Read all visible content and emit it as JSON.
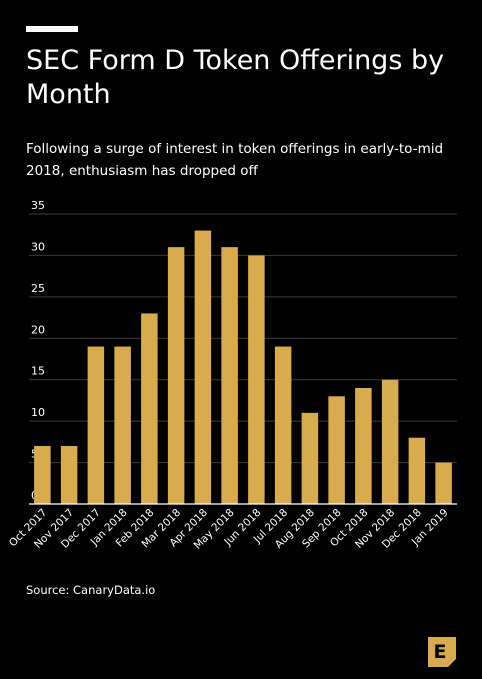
{
  "header": {
    "title": "SEC Form D Token Offerings by Month",
    "subtitle": "Following a surge of interest in token offerings in early-to-mid 2018, enthusiasm has dropped off"
  },
  "footer": {
    "source": "Source: CanaryData.io"
  },
  "logo": {
    "letter": "E",
    "color": "#d8ab4c"
  },
  "colors": {
    "background": "#000000",
    "bar": "#d8ab4c",
    "grid": "#3a3a3a",
    "text": "#ffffff"
  },
  "chart_data": {
    "type": "bar",
    "categories": [
      "Oct 2017",
      "Nov 2017",
      "Dec 2017",
      "Jan 2018",
      "Feb 2018",
      "Mar 2018",
      "Apr 2018",
      "May 2018",
      "Jun 2018",
      "Jul 2018",
      "Aug 2018",
      "Sep 2018",
      "Oct 2018",
      "Nov 2018",
      "Dec 2018",
      "Jan 2019"
    ],
    "values": [
      7,
      7,
      19,
      19,
      23,
      31,
      33,
      31,
      30,
      19,
      11,
      13,
      14,
      15,
      8,
      5
    ],
    "title": "SEC Form D Token Offerings by Month",
    "xlabel": "",
    "ylabel": "",
    "ylim": [
      0,
      35
    ],
    "yticks": [
      0,
      5,
      10,
      15,
      20,
      25,
      30,
      35
    ],
    "grid": true,
    "legend": "none"
  }
}
